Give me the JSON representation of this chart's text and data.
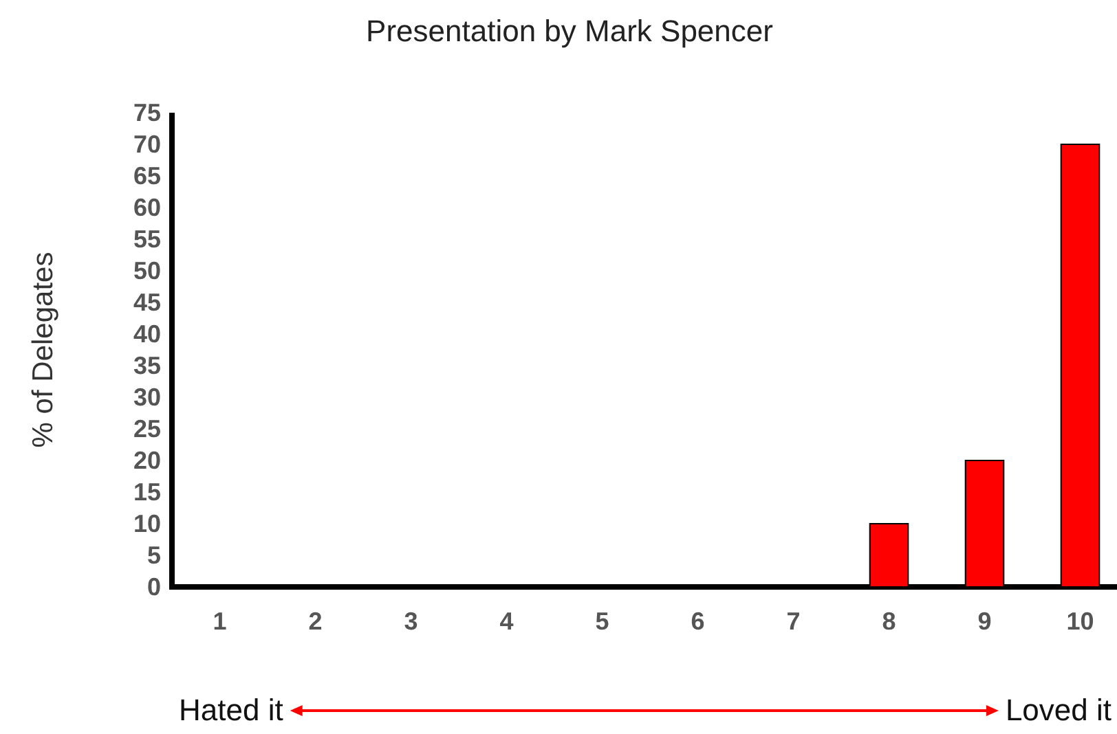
{
  "chart_data": {
    "type": "bar",
    "title": "Presentation by Mark Spencer",
    "ylabel": "% of Delegates",
    "categories": [
      "1",
      "2",
      "3",
      "4",
      "5",
      "6",
      "7",
      "8",
      "9",
      "10"
    ],
    "values": [
      0,
      0,
      0,
      0,
      0,
      0,
      0,
      10,
      20,
      70
    ],
    "color": "#ff0000",
    "ylim": [
      0,
      75
    ],
    "yticks": [
      0,
      5,
      10,
      15,
      20,
      25,
      30,
      35,
      40,
      45,
      50,
      55,
      60,
      65,
      70,
      75
    ],
    "grid": false,
    "annotations": [
      "Hated it",
      "Loved it"
    ]
  }
}
